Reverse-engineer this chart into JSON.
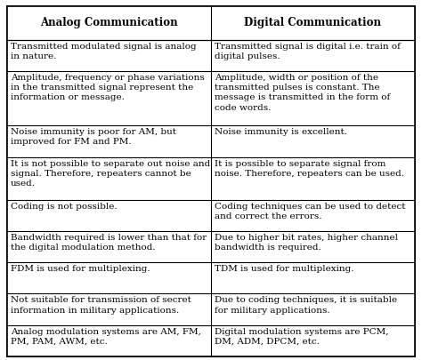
{
  "headers": [
    "Analog Communication",
    "Digital Communication"
  ],
  "rows": [
    [
      "Transmitted modulated signal is analog\nin nature.",
      "Transmitted signal is digital i.e. train of\ndigital pulses."
    ],
    [
      "Amplitude, frequency or phase variations\nin the transmitted signal represent the\ninformation or message.",
      "Amplitude, width or position of the\ntransmitted pulses is constant. The\nmessage is transmitted in the form of\ncode words."
    ],
    [
      "Noise immunity is poor for AM, but\nimproved for FM and PM.",
      "Noise immunity is excellent."
    ],
    [
      "It is not possible to separate out noise and\nsignal. Therefore, repeaters cannot be\nused.",
      "It is possible to separate signal from\nnoise. Therefore, repeaters can be used."
    ],
    [
      "Coding is not possible.",
      "Coding techniques can be used to detect\nand correct the errors."
    ],
    [
      "Bandwidth required is lower than that for\nthe digital modulation method.",
      "Due to higher bit rates, higher channel\nbandwidth is required."
    ],
    [
      "FDM is used for multiplexing.",
      "TDM is used for multiplexing."
    ],
    [
      "Not suitable for transmission of secret\ninformation in military applications.",
      "Due to coding techniques, it is suitable\nfor military applications."
    ],
    [
      "Analog modulation systems are AM, FM,\nPM, PAM, AWM, etc.",
      "Digital modulation systems are PCM,\nDM, ADM, DPCM, etc."
    ]
  ],
  "row_line_counts": [
    2,
    4,
    2,
    3,
    2,
    2,
    2,
    2,
    2
  ],
  "bg_color": "#ffffff",
  "border_color": "#000000",
  "text_color": "#000000",
  "header_fontsize": 8.5,
  "cell_fontsize": 7.5,
  "figsize": [
    4.74,
    4.05
  ],
  "dpi": 100
}
